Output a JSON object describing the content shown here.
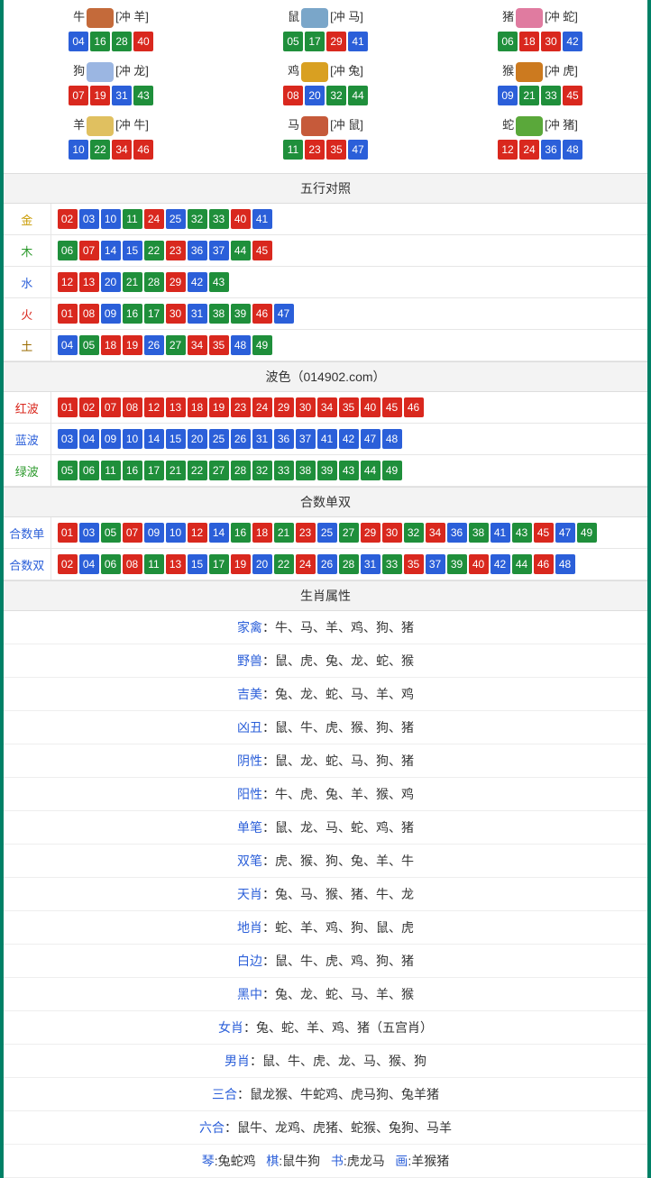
{
  "colors": {
    "border": "#008066",
    "red": "#d9281e",
    "blue": "#2b5fd9",
    "green": "#1f8f3b",
    "header_bg": "#f3f3f3"
  },
  "zodiac": [
    {
      "name": "牛",
      "conflict": "[冲 羊]",
      "icon_color": "#c46a3a",
      "balls": [
        {
          "n": "04",
          "c": "blue"
        },
        {
          "n": "16",
          "c": "green"
        },
        {
          "n": "28",
          "c": "green"
        },
        {
          "n": "40",
          "c": "red"
        }
      ]
    },
    {
      "name": "鼠",
      "conflict": "[冲 马]",
      "icon_color": "#7aa6c9",
      "balls": [
        {
          "n": "05",
          "c": "green"
        },
        {
          "n": "17",
          "c": "green"
        },
        {
          "n": "29",
          "c": "red"
        },
        {
          "n": "41",
          "c": "blue"
        }
      ]
    },
    {
      "name": "猪",
      "conflict": "[冲 蛇]",
      "icon_color": "#e07ba0",
      "balls": [
        {
          "n": "06",
          "c": "green"
        },
        {
          "n": "18",
          "c": "red"
        },
        {
          "n": "30",
          "c": "red"
        },
        {
          "n": "42",
          "c": "blue"
        }
      ]
    },
    {
      "name": "狗",
      "conflict": "[冲 龙]",
      "icon_color": "#9bb6e2",
      "balls": [
        {
          "n": "07",
          "c": "red"
        },
        {
          "n": "19",
          "c": "red"
        },
        {
          "n": "31",
          "c": "blue"
        },
        {
          "n": "43",
          "c": "green"
        }
      ]
    },
    {
      "name": "鸡",
      "conflict": "[冲 兔]",
      "icon_color": "#d9a021",
      "balls": [
        {
          "n": "08",
          "c": "red"
        },
        {
          "n": "20",
          "c": "blue"
        },
        {
          "n": "32",
          "c": "green"
        },
        {
          "n": "44",
          "c": "green"
        }
      ]
    },
    {
      "name": "猴",
      "conflict": "[冲 虎]",
      "icon_color": "#cc7a1f",
      "balls": [
        {
          "n": "09",
          "c": "blue"
        },
        {
          "n": "21",
          "c": "green"
        },
        {
          "n": "33",
          "c": "green"
        },
        {
          "n": "45",
          "c": "red"
        }
      ]
    },
    {
      "name": "羊",
      "conflict": "[冲 牛]",
      "icon_color": "#e0c060",
      "balls": [
        {
          "n": "10",
          "c": "blue"
        },
        {
          "n": "22",
          "c": "green"
        },
        {
          "n": "34",
          "c": "red"
        },
        {
          "n": "46",
          "c": "red"
        }
      ]
    },
    {
      "name": "马",
      "conflict": "[冲 鼠]",
      "icon_color": "#c65a3a",
      "balls": [
        {
          "n": "11",
          "c": "green"
        },
        {
          "n": "23",
          "c": "red"
        },
        {
          "n": "35",
          "c": "red"
        },
        {
          "n": "47",
          "c": "blue"
        }
      ]
    },
    {
      "name": "蛇",
      "conflict": "[冲 猪]",
      "icon_color": "#5aa83a",
      "balls": [
        {
          "n": "12",
          "c": "red"
        },
        {
          "n": "24",
          "c": "red"
        },
        {
          "n": "36",
          "c": "blue"
        },
        {
          "n": "48",
          "c": "blue"
        }
      ]
    }
  ],
  "wuxing_title": "五行对照",
  "wuxing": [
    {
      "label": "金",
      "label_class": "c-gold",
      "balls": [
        {
          "n": "02",
          "c": "red"
        },
        {
          "n": "03",
          "c": "blue"
        },
        {
          "n": "10",
          "c": "blue"
        },
        {
          "n": "11",
          "c": "green"
        },
        {
          "n": "24",
          "c": "red"
        },
        {
          "n": "25",
          "c": "blue"
        },
        {
          "n": "32",
          "c": "green"
        },
        {
          "n": "33",
          "c": "green"
        },
        {
          "n": "40",
          "c": "red"
        },
        {
          "n": "41",
          "c": "blue"
        }
      ]
    },
    {
      "label": "木",
      "label_class": "c-green",
      "balls": [
        {
          "n": "06",
          "c": "green"
        },
        {
          "n": "07",
          "c": "red"
        },
        {
          "n": "14",
          "c": "blue"
        },
        {
          "n": "15",
          "c": "blue"
        },
        {
          "n": "22",
          "c": "green"
        },
        {
          "n": "23",
          "c": "red"
        },
        {
          "n": "36",
          "c": "blue"
        },
        {
          "n": "37",
          "c": "blue"
        },
        {
          "n": "44",
          "c": "green"
        },
        {
          "n": "45",
          "c": "red"
        }
      ]
    },
    {
      "label": "水",
      "label_class": "c-blue",
      "balls": [
        {
          "n": "12",
          "c": "red"
        },
        {
          "n": "13",
          "c": "red"
        },
        {
          "n": "20",
          "c": "blue"
        },
        {
          "n": "21",
          "c": "green"
        },
        {
          "n": "28",
          "c": "green"
        },
        {
          "n": "29",
          "c": "red"
        },
        {
          "n": "42",
          "c": "blue"
        },
        {
          "n": "43",
          "c": "green"
        }
      ]
    },
    {
      "label": "火",
      "label_class": "c-red",
      "balls": [
        {
          "n": "01",
          "c": "red"
        },
        {
          "n": "08",
          "c": "red"
        },
        {
          "n": "09",
          "c": "blue"
        },
        {
          "n": "16",
          "c": "green"
        },
        {
          "n": "17",
          "c": "green"
        },
        {
          "n": "30",
          "c": "red"
        },
        {
          "n": "31",
          "c": "blue"
        },
        {
          "n": "38",
          "c": "green"
        },
        {
          "n": "39",
          "c": "green"
        },
        {
          "n": "46",
          "c": "red"
        },
        {
          "n": "47",
          "c": "blue"
        }
      ]
    },
    {
      "label": "土",
      "label_class": "c-brown",
      "balls": [
        {
          "n": "04",
          "c": "blue"
        },
        {
          "n": "05",
          "c": "green"
        },
        {
          "n": "18",
          "c": "red"
        },
        {
          "n": "19",
          "c": "red"
        },
        {
          "n": "26",
          "c": "blue"
        },
        {
          "n": "27",
          "c": "green"
        },
        {
          "n": "34",
          "c": "red"
        },
        {
          "n": "35",
          "c": "red"
        },
        {
          "n": "48",
          "c": "blue"
        },
        {
          "n": "49",
          "c": "green"
        }
      ]
    }
  ],
  "bose_title": "波色（014902.com）",
  "bose": [
    {
      "label": "红波",
      "label_class": "c-red",
      "balls": [
        {
          "n": "01",
          "c": "red"
        },
        {
          "n": "02",
          "c": "red"
        },
        {
          "n": "07",
          "c": "red"
        },
        {
          "n": "08",
          "c": "red"
        },
        {
          "n": "12",
          "c": "red"
        },
        {
          "n": "13",
          "c": "red"
        },
        {
          "n": "18",
          "c": "red"
        },
        {
          "n": "19",
          "c": "red"
        },
        {
          "n": "23",
          "c": "red"
        },
        {
          "n": "24",
          "c": "red"
        },
        {
          "n": "29",
          "c": "red"
        },
        {
          "n": "30",
          "c": "red"
        },
        {
          "n": "34",
          "c": "red"
        },
        {
          "n": "35",
          "c": "red"
        },
        {
          "n": "40",
          "c": "red"
        },
        {
          "n": "45",
          "c": "red"
        },
        {
          "n": "46",
          "c": "red"
        }
      ]
    },
    {
      "label": "蓝波",
      "label_class": "c-blue",
      "balls": [
        {
          "n": "03",
          "c": "blue"
        },
        {
          "n": "04",
          "c": "blue"
        },
        {
          "n": "09",
          "c": "blue"
        },
        {
          "n": "10",
          "c": "blue"
        },
        {
          "n": "14",
          "c": "blue"
        },
        {
          "n": "15",
          "c": "blue"
        },
        {
          "n": "20",
          "c": "blue"
        },
        {
          "n": "25",
          "c": "blue"
        },
        {
          "n": "26",
          "c": "blue"
        },
        {
          "n": "31",
          "c": "blue"
        },
        {
          "n": "36",
          "c": "blue"
        },
        {
          "n": "37",
          "c": "blue"
        },
        {
          "n": "41",
          "c": "blue"
        },
        {
          "n": "42",
          "c": "blue"
        },
        {
          "n": "47",
          "c": "blue"
        },
        {
          "n": "48",
          "c": "blue"
        }
      ]
    },
    {
      "label": "绿波",
      "label_class": "c-green",
      "balls": [
        {
          "n": "05",
          "c": "green"
        },
        {
          "n": "06",
          "c": "green"
        },
        {
          "n": "11",
          "c": "green"
        },
        {
          "n": "16",
          "c": "green"
        },
        {
          "n": "17",
          "c": "green"
        },
        {
          "n": "21",
          "c": "green"
        },
        {
          "n": "22",
          "c": "green"
        },
        {
          "n": "27",
          "c": "green"
        },
        {
          "n": "28",
          "c": "green"
        },
        {
          "n": "32",
          "c": "green"
        },
        {
          "n": "33",
          "c": "green"
        },
        {
          "n": "38",
          "c": "green"
        },
        {
          "n": "39",
          "c": "green"
        },
        {
          "n": "43",
          "c": "green"
        },
        {
          "n": "44",
          "c": "green"
        },
        {
          "n": "49",
          "c": "green"
        }
      ]
    }
  ],
  "heshu_title": "合数单双",
  "heshu": [
    {
      "label": "合数单",
      "label_class": "c-blue",
      "balls": [
        {
          "n": "01",
          "c": "red"
        },
        {
          "n": "03",
          "c": "blue"
        },
        {
          "n": "05",
          "c": "green"
        },
        {
          "n": "07",
          "c": "red"
        },
        {
          "n": "09",
          "c": "blue"
        },
        {
          "n": "10",
          "c": "blue"
        },
        {
          "n": "12",
          "c": "red"
        },
        {
          "n": "14",
          "c": "blue"
        },
        {
          "n": "16",
          "c": "green"
        },
        {
          "n": "18",
          "c": "red"
        },
        {
          "n": "21",
          "c": "green"
        },
        {
          "n": "23",
          "c": "red"
        },
        {
          "n": "25",
          "c": "blue"
        },
        {
          "n": "27",
          "c": "green"
        },
        {
          "n": "29",
          "c": "red"
        },
        {
          "n": "30",
          "c": "red"
        },
        {
          "n": "32",
          "c": "green"
        },
        {
          "n": "34",
          "c": "red"
        },
        {
          "n": "36",
          "c": "blue"
        },
        {
          "n": "38",
          "c": "green"
        },
        {
          "n": "41",
          "c": "blue"
        },
        {
          "n": "43",
          "c": "green"
        },
        {
          "n": "45",
          "c": "red"
        },
        {
          "n": "47",
          "c": "blue"
        },
        {
          "n": "49",
          "c": "green"
        }
      ]
    },
    {
      "label": "合数双",
      "label_class": "c-blue",
      "balls": [
        {
          "n": "02",
          "c": "red"
        },
        {
          "n": "04",
          "c": "blue"
        },
        {
          "n": "06",
          "c": "green"
        },
        {
          "n": "08",
          "c": "red"
        },
        {
          "n": "11",
          "c": "green"
        },
        {
          "n": "13",
          "c": "red"
        },
        {
          "n": "15",
          "c": "blue"
        },
        {
          "n": "17",
          "c": "green"
        },
        {
          "n": "19",
          "c": "red"
        },
        {
          "n": "20",
          "c": "blue"
        },
        {
          "n": "22",
          "c": "green"
        },
        {
          "n": "24",
          "c": "red"
        },
        {
          "n": "26",
          "c": "blue"
        },
        {
          "n": "28",
          "c": "green"
        },
        {
          "n": "31",
          "c": "blue"
        },
        {
          "n": "33",
          "c": "green"
        },
        {
          "n": "35",
          "c": "red"
        },
        {
          "n": "37",
          "c": "blue"
        },
        {
          "n": "39",
          "c": "green"
        },
        {
          "n": "40",
          "c": "red"
        },
        {
          "n": "42",
          "c": "blue"
        },
        {
          "n": "44",
          "c": "green"
        },
        {
          "n": "46",
          "c": "red"
        },
        {
          "n": "48",
          "c": "blue"
        }
      ]
    }
  ],
  "attr_title": "生肖属性",
  "attrs": [
    {
      "k": "家禽",
      "v": "：牛、马、羊、鸡、狗、猪"
    },
    {
      "k": "野兽",
      "v": "：鼠、虎、兔、龙、蛇、猴"
    },
    {
      "k": "吉美",
      "v": "：兔、龙、蛇、马、羊、鸡"
    },
    {
      "k": "凶丑",
      "v": "：鼠、牛、虎、猴、狗、猪"
    },
    {
      "k": "阴性",
      "v": "：鼠、龙、蛇、马、狗、猪"
    },
    {
      "k": "阳性",
      "v": "：牛、虎、兔、羊、猴、鸡"
    },
    {
      "k": "单笔",
      "v": "：鼠、龙、马、蛇、鸡、猪"
    },
    {
      "k": "双笔",
      "v": "：虎、猴、狗、兔、羊、牛"
    },
    {
      "k": "天肖",
      "v": "：兔、马、猴、猪、牛、龙"
    },
    {
      "k": "地肖",
      "v": "：蛇、羊、鸡、狗、鼠、虎"
    },
    {
      "k": "白边",
      "v": "：鼠、牛、虎、鸡、狗、猪"
    },
    {
      "k": "黑中",
      "v": "：兔、龙、蛇、马、羊、猴"
    },
    {
      "k": "女肖",
      "v": "：兔、蛇、羊、鸡、猪（五宫肖）"
    },
    {
      "k": "男肖",
      "v": "：鼠、牛、虎、龙、马、猴、狗"
    },
    {
      "k": "三合",
      "v": "：鼠龙猴、牛蛇鸡、虎马狗、兔羊猪"
    },
    {
      "k": "六合",
      "v": "：鼠牛、龙鸡、虎猪、蛇猴、兔狗、马羊"
    }
  ],
  "footer_parts": [
    {
      "k": "琴",
      "v": ":兔蛇鸡"
    },
    {
      "k": "棋",
      "v": ":鼠牛狗"
    },
    {
      "k": "书",
      "v": ":虎龙马"
    },
    {
      "k": "画",
      "v": ":羊猴猪"
    }
  ]
}
